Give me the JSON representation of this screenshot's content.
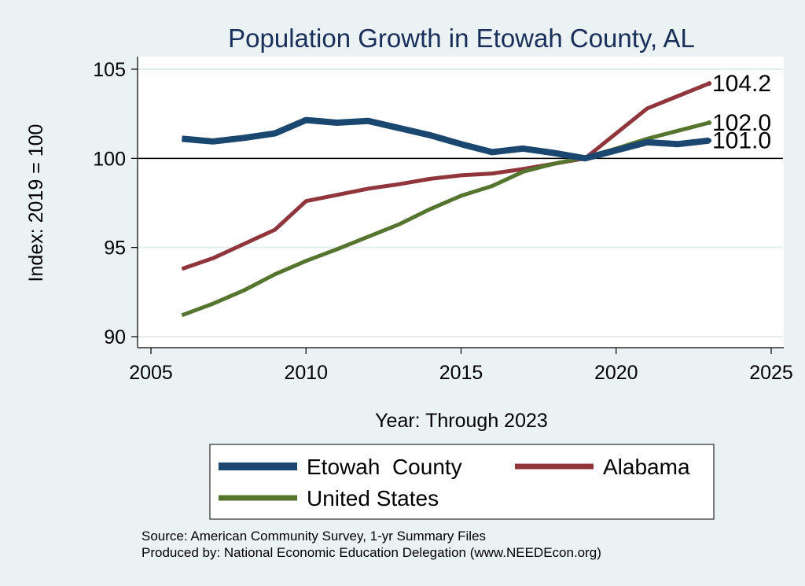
{
  "chart_data": {
    "type": "line",
    "title": "Population Growth in Etowah County, AL",
    "xlabel": "Year: Through 2023",
    "ylabel": "Index: 2019 = 100",
    "xlim": [
      2005,
      2025
    ],
    "ylim": [
      90,
      105
    ],
    "xticks": [
      "2005",
      "2010",
      "2015",
      "2020",
      "2025"
    ],
    "yticks": [
      "90",
      "95",
      "100",
      "105"
    ],
    "reference_line": 100,
    "x": [
      2006,
      2007,
      2008,
      2009,
      2010,
      2011,
      2012,
      2013,
      2014,
      2015,
      2016,
      2017,
      2018,
      2019,
      2020,
      2021,
      2022,
      2023
    ],
    "series": [
      {
        "name": "Etowah  County",
        "color": "#1a476f",
        "values": [
          101.1,
          100.95,
          101.15,
          101.4,
          102.15,
          102.0,
          102.1,
          101.7,
          101.3,
          100.8,
          100.35,
          100.55,
          100.3,
          100.0,
          100.45,
          100.9,
          100.8,
          101.0
        ],
        "end_label": "101.0"
      },
      {
        "name": "Alabama",
        "color": "#90353b",
        "values": [
          93.8,
          94.4,
          95.2,
          96.0,
          97.6,
          97.95,
          98.3,
          98.55,
          98.85,
          99.05,
          99.15,
          99.4,
          99.7,
          100.0,
          101.4,
          102.8,
          103.5,
          104.2
        ],
        "end_label": "104.2"
      },
      {
        "name": "United States",
        "color": "#55752f",
        "values": [
          91.2,
          91.85,
          92.6,
          93.5,
          94.25,
          94.9,
          95.6,
          96.3,
          97.15,
          97.9,
          98.45,
          99.25,
          99.7,
          100.05,
          100.55,
          101.1,
          101.55,
          102.0
        ],
        "end_label": "102.0"
      }
    ],
    "legend_placement": "bottom",
    "grid": true
  },
  "source_text": "Source: American Community Survey, 1-yr Summary Files",
  "produced_text": "Produced by: National Economic Education Delegation (www.NEEDEcon.org)"
}
